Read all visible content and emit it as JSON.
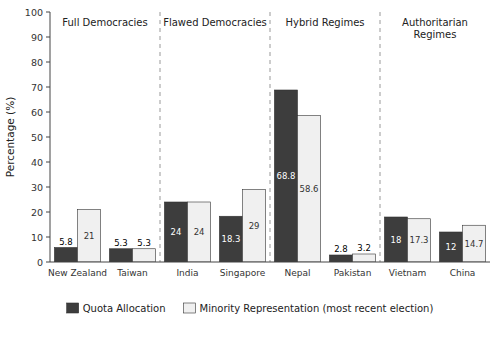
{
  "chart_data": {
    "type": "bar",
    "categories": [
      "New Zealand",
      "Taiwan",
      "India",
      "Singapore",
      "Nepal",
      "Pakistan",
      "Vietnam",
      "China"
    ],
    "series": [
      {
        "name": "Quota Allocation",
        "color": "#3d3d3d",
        "values": [
          5.8,
          5.3,
          24,
          18.3,
          68.8,
          2.8,
          18,
          12
        ]
      },
      {
        "name": "Minority Representation (most recent election)",
        "color": "#f0f0f0",
        "values": [
          21,
          5.3,
          24,
          29,
          58.6,
          3.2,
          17.3,
          14.7
        ]
      }
    ],
    "y_label": "Percentage (%)",
    "ylim": [
      0,
      100
    ],
    "yticks": [
      0,
      10,
      20,
      30,
      40,
      50,
      60,
      70,
      80,
      90,
      100
    ],
    "grid": false,
    "legend": "bottom",
    "data_labels": true,
    "annotations": [
      {
        "text": "Full Democracies",
        "categories": [
          "New Zealand",
          "Taiwan"
        ]
      },
      {
        "text": "Flawed Democracies",
        "categories": [
          "India",
          "Singapore"
        ]
      },
      {
        "text": "Hybrid Regimes",
        "categories": [
          "Nepal",
          "Pakistan"
        ]
      },
      {
        "text": "Authoritarian\nRegimes",
        "categories": [
          "Vietnam",
          "China"
        ]
      }
    ]
  }
}
